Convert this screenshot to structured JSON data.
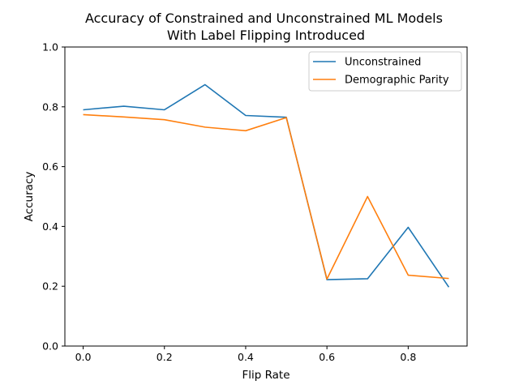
{
  "chart_data": {
    "type": "line",
    "title": "Accuracy of Constrained and Unconstrained ML Models\nWith Label Flipping Introduced",
    "xlabel": "Flip Rate",
    "ylabel": "Accuracy",
    "x": [
      0.0,
      0.1,
      0.2,
      0.3,
      0.4,
      0.5,
      0.6,
      0.7,
      0.8,
      0.9
    ],
    "xlim": [
      -0.045,
      0.945
    ],
    "ylim": [
      0.0,
      1.0
    ],
    "xticks": [
      0.0,
      0.2,
      0.4,
      0.6,
      0.8
    ],
    "yticks": [
      0.0,
      0.2,
      0.4,
      0.6,
      0.8,
      1.0
    ],
    "xtick_labels": [
      "0.0",
      "0.2",
      "0.4",
      "0.6",
      "0.8"
    ],
    "ytick_labels": [
      "0.0",
      "0.2",
      "0.4",
      "0.6",
      "0.8",
      "1.0"
    ],
    "grid": false,
    "legend_position": "top-right",
    "series": [
      {
        "name": "Unconstrained",
        "color": "#1f77b4",
        "values": [
          0.79,
          0.802,
          0.79,
          0.874,
          0.771,
          0.765,
          0.222,
          0.225,
          0.397,
          0.197
        ]
      },
      {
        "name": "Demographic Parity",
        "color": "#ff7f0e",
        "values": [
          0.774,
          0.766,
          0.757,
          0.732,
          0.72,
          0.764,
          0.224,
          0.5,
          0.237,
          0.226
        ]
      }
    ]
  }
}
